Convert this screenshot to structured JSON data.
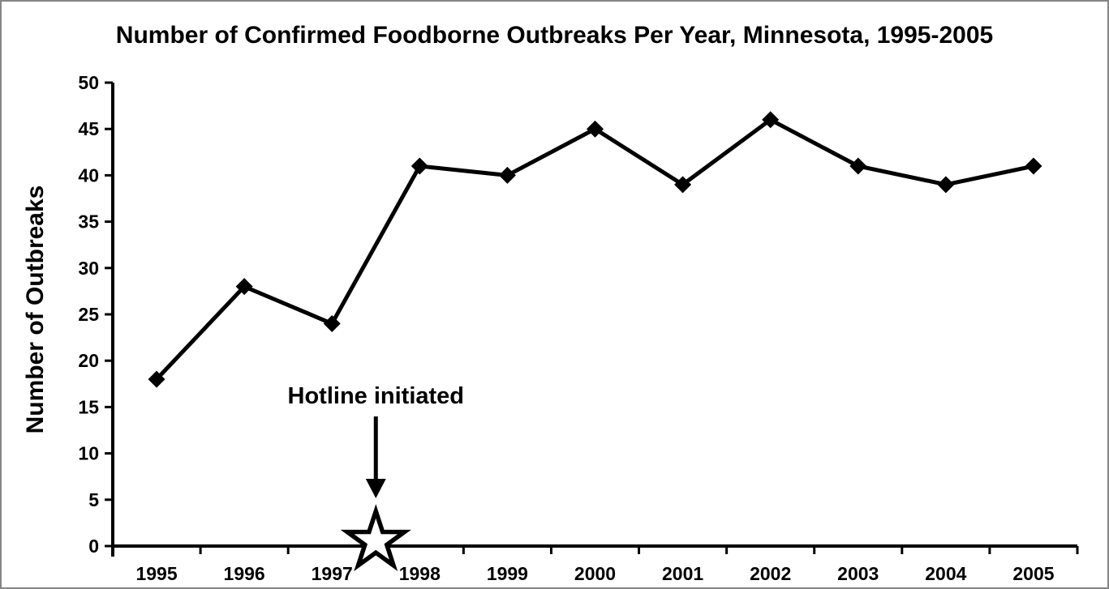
{
  "chart_data": {
    "type": "line",
    "title": "Number of Confirmed Foodborne Outbreaks Per Year, Minnesota, 1995-2005",
    "ylabel": "Number of Outbreaks",
    "xlabel": "",
    "categories": [
      "1995",
      "1996",
      "1997",
      "1998",
      "1999",
      "2000",
      "2001",
      "2002",
      "2003",
      "2004",
      "2005"
    ],
    "values": [
      18,
      28,
      24,
      41,
      40,
      45,
      39,
      46,
      41,
      39,
      41
    ],
    "ylim": [
      0,
      50
    ],
    "ytick_step": 5,
    "yticks": [
      0,
      5,
      10,
      15,
      20,
      25,
      30,
      35,
      40,
      45,
      50
    ],
    "grid": false,
    "legend_position": "none",
    "marker": "diamond",
    "annotation": {
      "text": "Hotline initiated",
      "between_categories": [
        "1997",
        "1998"
      ],
      "at_value": 0,
      "marker": "open-star",
      "pointer": "down-arrow"
    }
  },
  "style": {
    "line_color": "#000000",
    "marker_color": "#000000",
    "text_color": "#000000",
    "background": "#ffffff",
    "frame_border": "#858585"
  }
}
